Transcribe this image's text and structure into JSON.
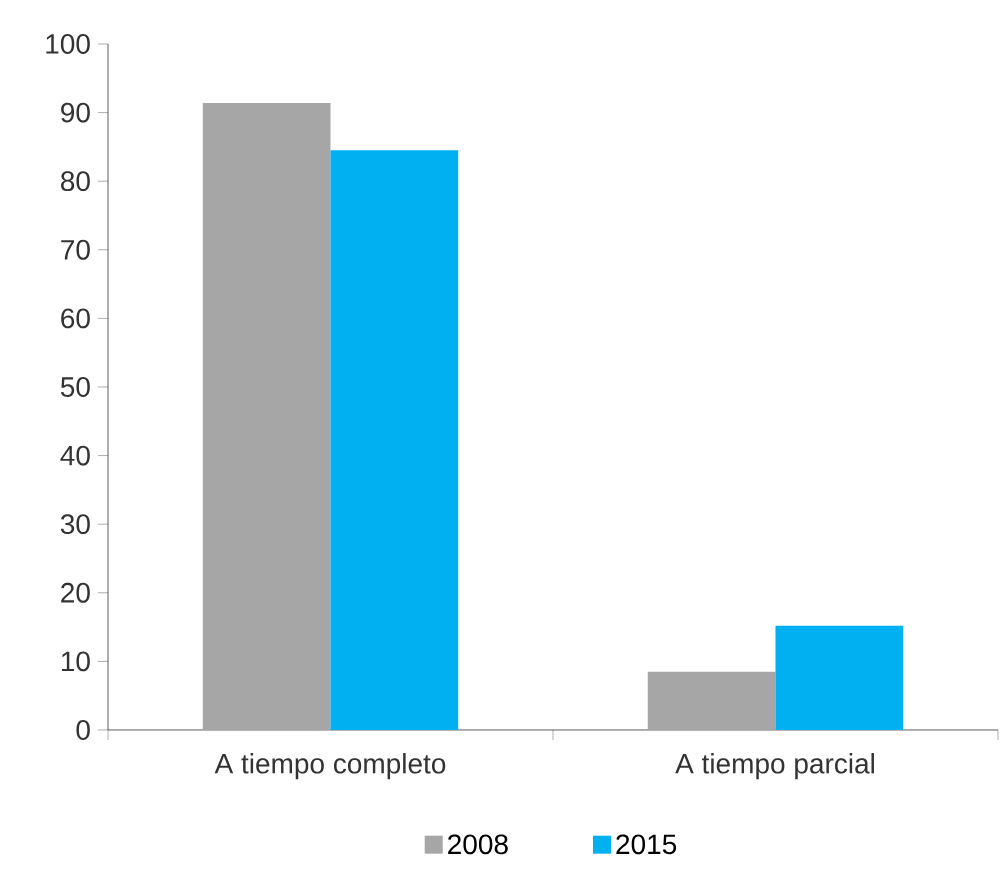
{
  "chart_data": {
    "type": "bar",
    "categories": [
      "A tiempo completo",
      "A tiempo parcial"
    ],
    "series": [
      {
        "name": "2008",
        "color": "#a6a6a6",
        "values": [
          91.4,
          8.5
        ]
      },
      {
        "name": "2015",
        "color": "#00b0f0",
        "values": [
          84.5,
          15.2
        ]
      }
    ],
    "ylim": [
      0,
      100
    ],
    "yticks": [
      0,
      10,
      20,
      30,
      40,
      50,
      60,
      70,
      80,
      90,
      100
    ],
    "grid": false,
    "legend": "bottom"
  }
}
